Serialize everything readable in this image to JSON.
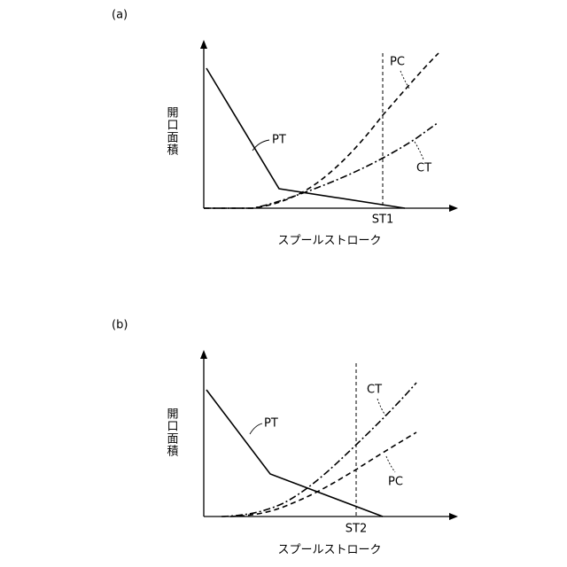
{
  "panels": [
    {
      "label": "(a)",
      "y_axis": "開口面積",
      "x_axis": "スプールストローク",
      "curves": [
        {
          "label": "PT"
        },
        {
          "label": "PC"
        },
        {
          "label": "CT"
        }
      ],
      "stroke_marker": "ST1"
    },
    {
      "label": "(b)",
      "y_axis": "開口面積",
      "x_axis": "スプールストローク",
      "curves": [
        {
          "label": "PT"
        },
        {
          "label": "CT"
        },
        {
          "label": "PC"
        }
      ],
      "stroke_marker": "ST2"
    }
  ]
}
